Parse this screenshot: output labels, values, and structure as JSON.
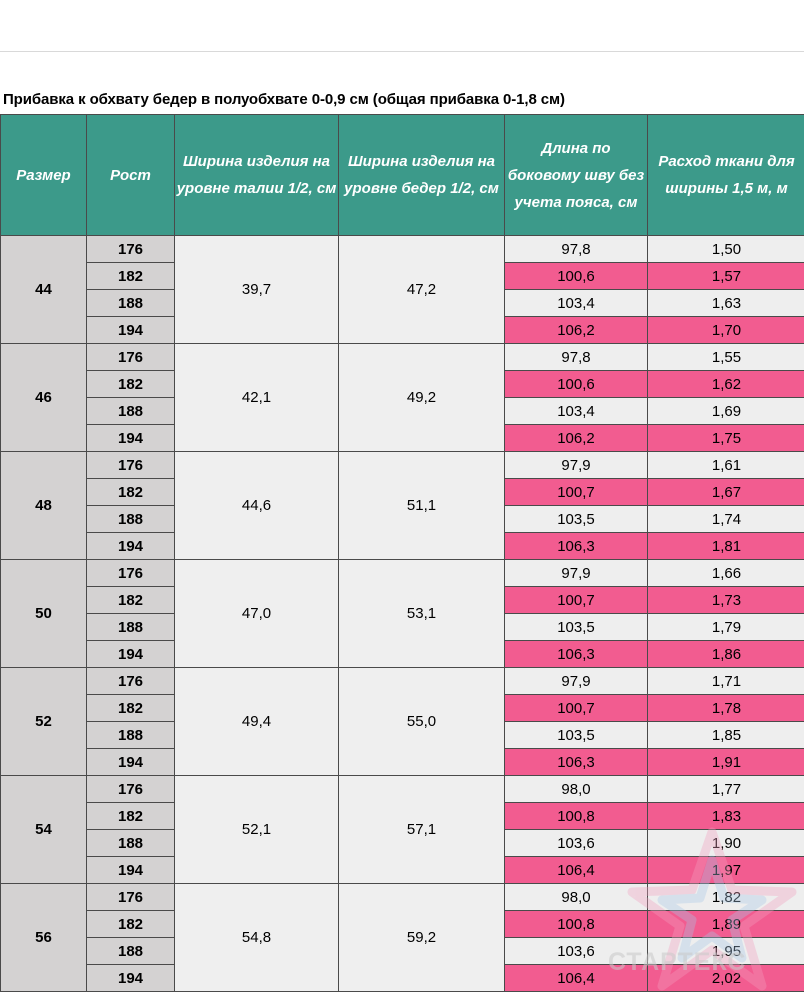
{
  "title": "Прибавка к обхвату бедер в полуобхвате 0-0,9 см (общая прибавка 0-1,8 см)",
  "headers": {
    "size": "Размер",
    "height": "Рост",
    "waist_width": "Ширина изделия на уровне талии 1/2, см",
    "hip_width": "Ширина изделия на уровне бедер 1/2, см",
    "side_length": "Длина по боковому шву без учета пояса, см",
    "fabric": "Расход ткани для ширины 1,5 м, м"
  },
  "colors": {
    "header_bg": "#3c9a8a",
    "highlight": "#f25c90",
    "light_cell": "#eeeeee",
    "gray_cell": "#d4d2d2"
  },
  "groups": [
    {
      "size": "44",
      "waist": "39,7",
      "hip": "47,2",
      "rows": [
        {
          "height": "176",
          "length": "97,8",
          "fabric": "1,50",
          "highlight": false
        },
        {
          "height": "182",
          "length": "100,6",
          "fabric": "1,57",
          "highlight": true
        },
        {
          "height": "188",
          "length": "103,4",
          "fabric": "1,63",
          "highlight": false
        },
        {
          "height": "194",
          "length": "106,2",
          "fabric": "1,70",
          "highlight": true
        }
      ]
    },
    {
      "size": "46",
      "waist": "42,1",
      "hip": "49,2",
      "rows": [
        {
          "height": "176",
          "length": "97,8",
          "fabric": "1,55",
          "highlight": false
        },
        {
          "height": "182",
          "length": "100,6",
          "fabric": "1,62",
          "highlight": true
        },
        {
          "height": "188",
          "length": "103,4",
          "fabric": "1,69",
          "highlight": false
        },
        {
          "height": "194",
          "length": "106,2",
          "fabric": "1,75",
          "highlight": true
        }
      ]
    },
    {
      "size": "48",
      "waist": "44,6",
      "hip": "51,1",
      "rows": [
        {
          "height": "176",
          "length": "97,9",
          "fabric": "1,61",
          "highlight": false
        },
        {
          "height": "182",
          "length": "100,7",
          "fabric": "1,67",
          "highlight": true
        },
        {
          "height": "188",
          "length": "103,5",
          "fabric": "1,74",
          "highlight": false
        },
        {
          "height": "194",
          "length": "106,3",
          "fabric": "1,81",
          "highlight": true
        }
      ]
    },
    {
      "size": "50",
      "waist": "47,0",
      "hip": "53,1",
      "rows": [
        {
          "height": "176",
          "length": "97,9",
          "fabric": "1,66",
          "highlight": false
        },
        {
          "height": "182",
          "length": "100,7",
          "fabric": "1,73",
          "highlight": true
        },
        {
          "height": "188",
          "length": "103,5",
          "fabric": "1,79",
          "highlight": false
        },
        {
          "height": "194",
          "length": "106,3",
          "fabric": "1,86",
          "highlight": true
        }
      ]
    },
    {
      "size": "52",
      "waist": "49,4",
      "hip": "55,0",
      "rows": [
        {
          "height": "176",
          "length": "97,9",
          "fabric": "1,71",
          "highlight": false
        },
        {
          "height": "182",
          "length": "100,7",
          "fabric": "1,78",
          "highlight": true
        },
        {
          "height": "188",
          "length": "103,5",
          "fabric": "1,85",
          "highlight": false
        },
        {
          "height": "194",
          "length": "106,3",
          "fabric": "1,91",
          "highlight": true
        }
      ]
    },
    {
      "size": "54",
      "waist": "52,1",
      "hip": "57,1",
      "rows": [
        {
          "height": "176",
          "length": "98,0",
          "fabric": "1,77",
          "highlight": false
        },
        {
          "height": "182",
          "length": "100,8",
          "fabric": "1,83",
          "highlight": true
        },
        {
          "height": "188",
          "length": "103,6",
          "fabric": "1,90",
          "highlight": false
        },
        {
          "height": "194",
          "length": "106,4",
          "fabric": "1,97",
          "highlight": true
        }
      ]
    },
    {
      "size": "56",
      "waist": "54,8",
      "hip": "59,2",
      "rows": [
        {
          "height": "176",
          "length": "98,0",
          "fabric": "1,82",
          "highlight": false
        },
        {
          "height": "182",
          "length": "100,8",
          "fabric": "1,89",
          "highlight": true
        },
        {
          "height": "188",
          "length": "103,6",
          "fabric": "1,95",
          "highlight": false
        },
        {
          "height": "194",
          "length": "106,4",
          "fabric": "2,02",
          "highlight": true
        }
      ]
    }
  ],
  "watermark": {
    "text": "СТАРТЕКС",
    "icon": "star-logo-icon"
  }
}
